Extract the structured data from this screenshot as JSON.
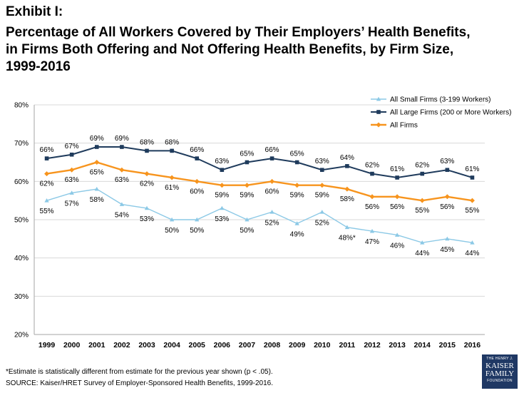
{
  "header": {
    "exhibit": "Exhibit I:",
    "title_lines": [
      "Percentage of All Workers Covered by Their Employers’ Health Benefits,",
      "in Firms Both Offering and Not Offering Health Benefits, by Firm Size,",
      "1999-2016"
    ]
  },
  "footer": {
    "note": "*Estimate is statistically different from estimate for the previous year shown (p < .05).",
    "source": "SOURCE:  Kaiser/HRET Survey of Employer-Sponsored Health Benefits, 1999-2016."
  },
  "logo": {
    "line1": "THE HENRY J.",
    "line2": "KAISER",
    "line3": "FAMILY",
    "line4": "FOUNDATION"
  },
  "colors": {
    "small": "#8cc9e6",
    "large": "#1f3b5c",
    "all": "#f7941d",
    "grid": "#d9d9d9"
  },
  "chart_data": {
    "type": "line",
    "title": "Percentage of All Workers Covered by Their Employers’ Health Benefits, in Firms Both Offering and Not Offering Health Benefits, by Firm Size, 1999-2016",
    "categories": [
      "1999",
      "2000",
      "2001",
      "2002",
      "2003",
      "2004",
      "2005",
      "2006",
      "2007",
      "2008",
      "2009",
      "2010",
      "2011",
      "2012",
      "2013",
      "2014",
      "2015",
      "2016"
    ],
    "ylim": [
      20,
      80
    ],
    "yticks": [
      20,
      30,
      40,
      50,
      60,
      70,
      80
    ],
    "ytick_labels": [
      "20%",
      "30%",
      "40%",
      "50%",
      "60%",
      "70%",
      "80%"
    ],
    "legend_position": "top-right",
    "series": [
      {
        "key": "small",
        "name": "All Small Firms (3-199 Workers)",
        "marker": "triangle",
        "values": [
          55,
          57,
          58,
          54,
          53,
          50,
          50,
          53,
          50,
          52,
          49,
          52,
          48,
          47,
          46,
          44,
          45,
          44
        ],
        "labels": [
          "55%",
          "57%",
          "58%",
          "54%",
          "53%",
          "50%",
          "50%",
          "53%",
          "50%",
          "52%",
          "49%",
          "52%",
          "48%*",
          "47%",
          "46%",
          "44%",
          "45%",
          "44%"
        ]
      },
      {
        "key": "large",
        "name": "All Large Firms (200 or More Workers)",
        "marker": "square",
        "values": [
          66,
          67,
          69,
          69,
          68,
          68,
          66,
          63,
          65,
          66,
          65,
          63,
          64,
          62,
          61,
          62,
          63,
          61
        ],
        "labels": [
          "66%",
          "67%",
          "69%",
          "69%",
          "68%",
          "68%",
          "66%",
          "63%",
          "65%",
          "66%",
          "65%",
          "63%",
          "64%",
          "62%",
          "61%",
          "62%",
          "63%",
          "61%"
        ]
      },
      {
        "key": "all",
        "name": "All Firms",
        "marker": "diamond",
        "values": [
          62,
          63,
          65,
          63,
          62,
          61,
          60,
          59,
          59,
          60,
          59,
          59,
          58,
          56,
          56,
          55,
          56,
          55
        ],
        "labels": [
          "62%",
          "63%",
          "65%",
          "63%",
          "62%",
          "61%",
          "60%",
          "59%",
          "59%",
          "60%",
          "59%",
          "59%",
          "58%",
          "56%",
          "56%",
          "55%",
          "56%",
          "55%"
        ]
      }
    ]
  }
}
